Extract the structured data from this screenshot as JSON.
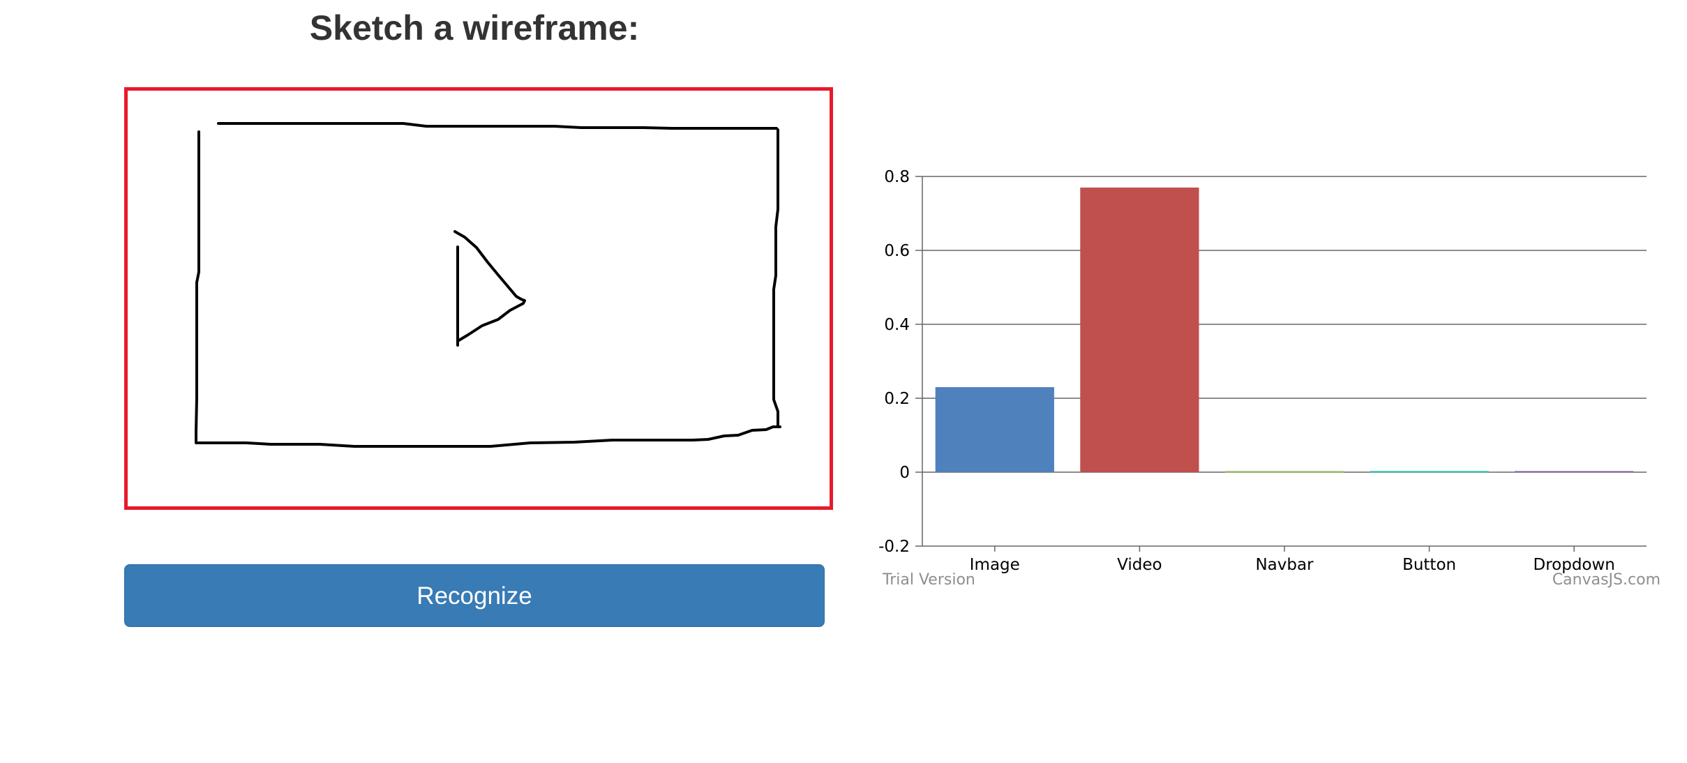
{
  "page": {
    "title": "Sketch a wireframe:"
  },
  "sketch_canvas": {
    "border_color": "#e8192c",
    "stroke_color": "#000000"
  },
  "recognize_button": {
    "label": "Recognize",
    "color": "#387bb5"
  },
  "chart_data": {
    "type": "bar",
    "categories": [
      "Image",
      "Video",
      "Navbar",
      "Button",
      "Dropdown"
    ],
    "values": [
      0.23,
      0.77,
      0.003,
      0.003,
      0.003
    ],
    "colors": [
      "#4f81bc",
      "#c0504e",
      "#9bbb58",
      "#23bfaa",
      "#8064a1"
    ],
    "yticks": [
      "0.8",
      "0.6",
      "0.4",
      "0.2",
      "0",
      "-0.2"
    ],
    "ytick_values": [
      0.8,
      0.6,
      0.4,
      0.2,
      0,
      -0.2
    ],
    "ylim": [
      -0.2,
      0.8
    ],
    "grid": true,
    "legend": "none",
    "title": "",
    "xlabel": "",
    "ylabel": ""
  },
  "watermarks": {
    "trial": "Trial Version",
    "brand": "CanvasJS.com"
  }
}
